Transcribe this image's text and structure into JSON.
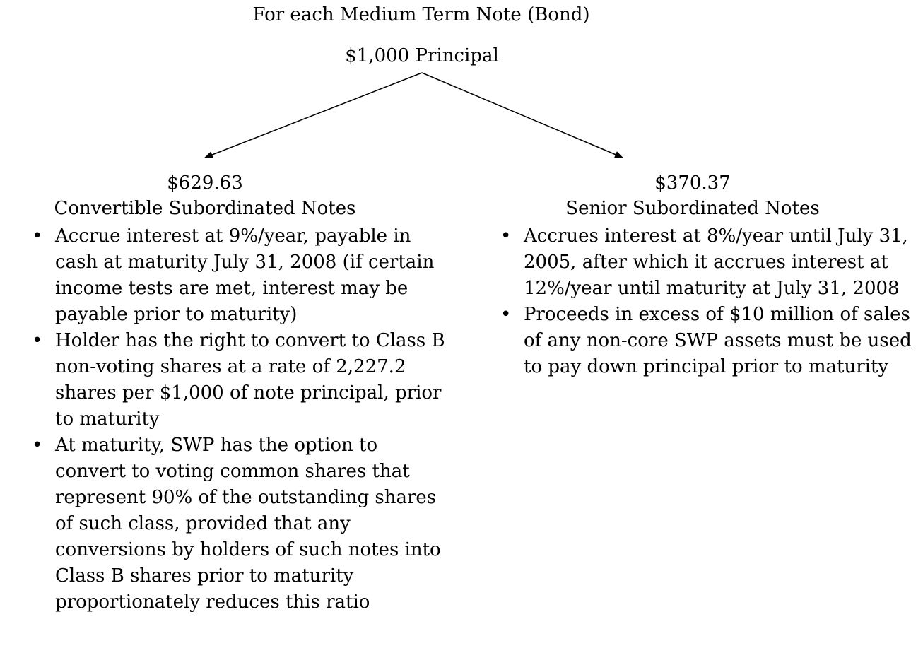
{
  "title": "For each Medium Term Note (Bond)",
  "root": {
    "label": "$1,000 Principal"
  },
  "branches": [
    {
      "amount": "$629.63",
      "name": "Convertible Subordinated Notes",
      "bullets": [
        "Accrue interest at 9%/year, payable in cash at maturity July 31, 2008 (if certain income tests are met, interest may be payable prior to maturity)",
        "Holder has the right to convert to Class B non-voting shares at a rate of 2,227.2 shares per $1,000 of note principal, prior to maturity",
        "At maturity, SWP has the option to convert to voting common shares that represent 90% of the outstanding shares of such class, provided that any conversions by holders of such notes into Class B shares prior to maturity proportionately reduces this ratio"
      ]
    },
    {
      "amount": "$370.37",
      "name": "Senior Subordinated Notes",
      "bullets": [
        "Accrues interest at 8%/year until July 31, 2005, after which it accrues interest at 12%/year until maturity at July 31, 2008",
        "Proceeds in excess of $10 million of sales of any non-core SWP assets must be used to pay down principal prior to maturity"
      ]
    }
  ]
}
